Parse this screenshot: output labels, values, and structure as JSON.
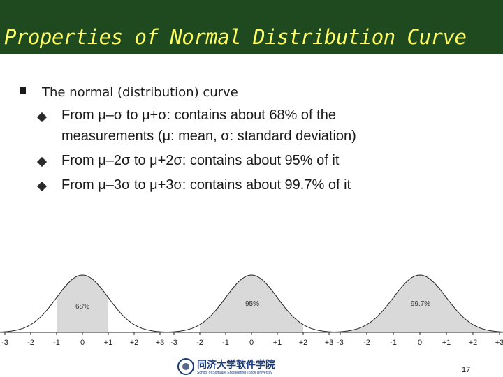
{
  "slide": {
    "title": "Properties of Normal Distribution Curve",
    "bullet": "The normal (distribution) curve",
    "sub_bullets": [
      "From μ–σ to μ+σ: contains about 68% of the",
      "measurements  (μ: mean, σ: standard deviation)",
      " From μ–2σ to μ+2σ: contains about 95% of it",
      "From μ–3σ to μ+3σ: contains about 99.7% of it"
    ],
    "page_number": "17",
    "logo": {
      "chinese": "同济大学软件学院",
      "english": "School of Software Engineering Tongji University"
    }
  },
  "colors": {
    "title_bg": "#1f4a1f",
    "title_text": "#ffff66",
    "shade": "#d9d9d9"
  },
  "chart_data": [
    {
      "type": "area",
      "x_ticks": [
        "-3",
        "-2",
        "-1",
        "0",
        "+1",
        "+2",
        "+3"
      ],
      "shaded_range": [
        -1,
        1
      ],
      "label": "68%"
    },
    {
      "type": "area",
      "x_ticks": [
        "-3",
        "-2",
        "-1",
        "0",
        "+1",
        "+2",
        "+3"
      ],
      "shaded_range": [
        -2,
        2
      ],
      "label": "95%"
    },
    {
      "type": "area",
      "x_ticks": [
        "-3",
        "-2",
        "-1",
        "0",
        "+1",
        "+2",
        "+3"
      ],
      "shaded_range": [
        -3,
        3
      ],
      "label": "99.7%"
    }
  ]
}
